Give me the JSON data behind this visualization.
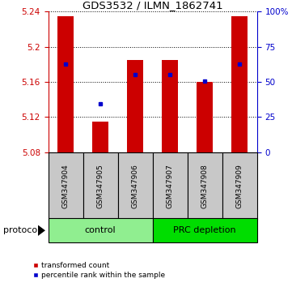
{
  "title": "GDS3532 / ILMN_1862741",
  "samples": [
    "GSM347904",
    "GSM347905",
    "GSM347906",
    "GSM347907",
    "GSM347908",
    "GSM347909"
  ],
  "baseline": 5.08,
  "bar_tops": [
    5.235,
    5.115,
    5.185,
    5.185,
    5.16,
    5.235
  ],
  "blue_vals": [
    5.18,
    5.135,
    5.168,
    5.168,
    5.161,
    5.18
  ],
  "ylim_left": [
    5.08,
    5.24
  ],
  "ylim_right": [
    0,
    100
  ],
  "yticks_left": [
    5.08,
    5.12,
    5.16,
    5.2,
    5.24
  ],
  "ytick_labels_left": [
    "5.08",
    "5.12",
    "5.16",
    "5.2",
    "5.24"
  ],
  "yticks_right": [
    0,
    25,
    50,
    75,
    100
  ],
  "ytick_labels_right": [
    "0",
    "25",
    "50",
    "75",
    "100%"
  ],
  "groups": [
    {
      "label": "control",
      "samples": [
        0,
        1,
        2
      ],
      "color": "#90EE90"
    },
    {
      "label": "PRC depletion",
      "samples": [
        3,
        4,
        5
      ],
      "color": "#00DD00"
    }
  ],
  "bar_color": "#CC0000",
  "blue_color": "#0000CC",
  "bar_width": 0.45,
  "protocol_label": "protocol",
  "legend_red": "transformed count",
  "legend_blue": "percentile rank within the sample",
  "bg_color": "#FFFFFF",
  "plot_bg_color": "#FFFFFF",
  "tick_label_color_left": "#CC0000",
  "tick_label_color_right": "#0000CC",
  "sample_bg": "#C8C8C8"
}
